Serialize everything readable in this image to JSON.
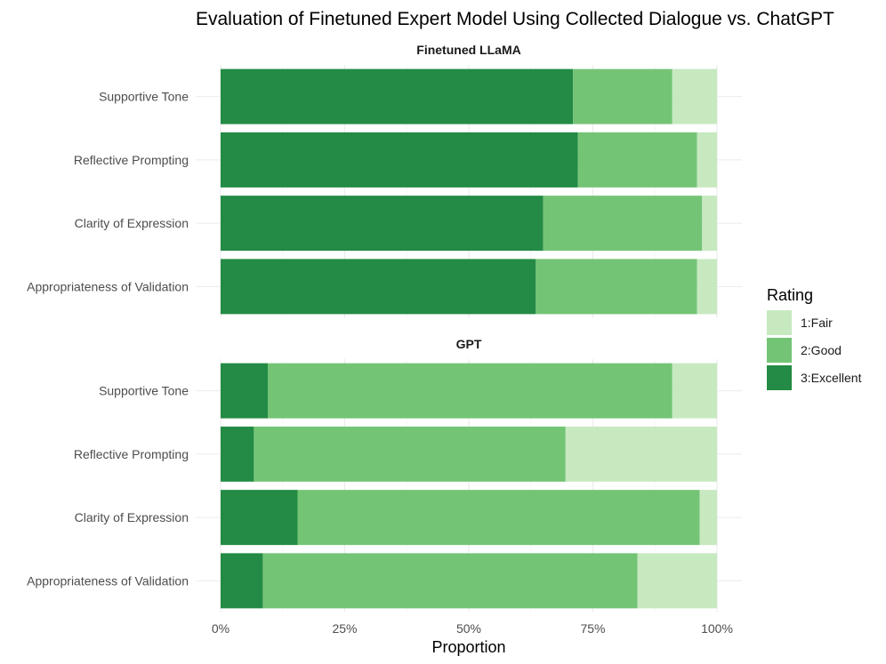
{
  "chart_data": {
    "type": "bar",
    "orientation": "horizontal",
    "stacked": true,
    "title": "Evaluation of Finetuned Expert Model Using Collected Dialogue vs. ChatGPT",
    "xlabel": "Proportion",
    "ylabel": "",
    "xlim": [
      0,
      1
    ],
    "x_ticks": [
      "0%",
      "25%",
      "50%",
      "75%",
      "100%"
    ],
    "grid": true,
    "legend": {
      "title": "Rating",
      "position": "right",
      "entries": [
        {
          "label": "1:Fair",
          "color": "#c7e9c0"
        },
        {
          "label": "2:Good",
          "color": "#74c476"
        },
        {
          "label": "3:Excellent",
          "color": "#238b45"
        }
      ]
    },
    "categories": [
      "Supportive Tone",
      "Reflective Prompting",
      "Clarity of Expression",
      "Appropriateness of Validation"
    ],
    "panels": [
      {
        "name": "Finetuned LLaMA",
        "series": [
          {
            "name": "3:Excellent",
            "values": [
              0.71,
              0.72,
              0.65,
              0.635
            ]
          },
          {
            "name": "2:Good",
            "values": [
              0.2,
              0.24,
              0.32,
              0.325
            ]
          },
          {
            "name": "1:Fair",
            "values": [
              0.09,
              0.04,
              0.03,
              0.04
            ]
          }
        ]
      },
      {
        "name": "GPT",
        "series": [
          {
            "name": "3:Excellent",
            "values": [
              0.095,
              0.067,
              0.155,
              0.085
            ]
          },
          {
            "name": "2:Good",
            "values": [
              0.815,
              0.628,
              0.81,
              0.755
            ]
          },
          {
            "name": "1:Fair",
            "values": [
              0.09,
              0.305,
              0.035,
              0.16
            ]
          }
        ]
      }
    ]
  }
}
